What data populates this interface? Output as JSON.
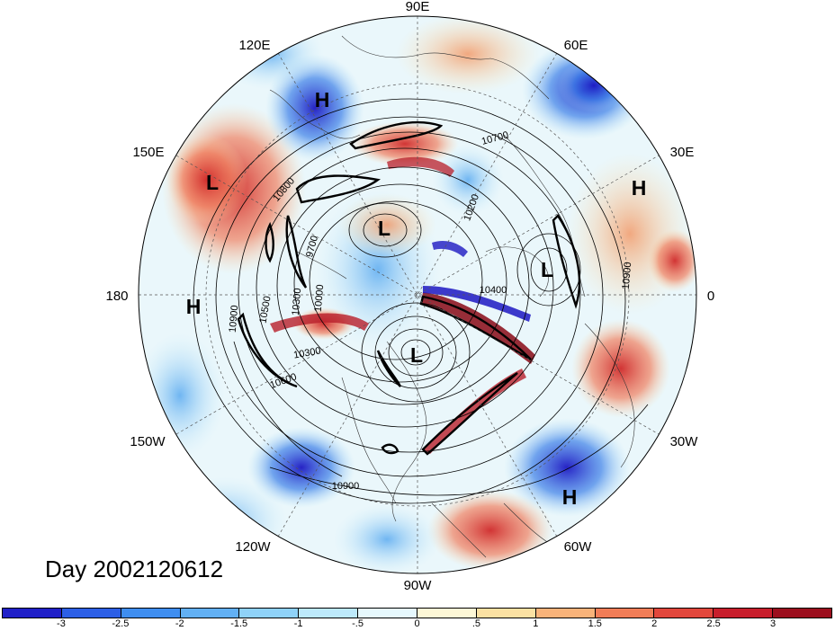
{
  "date_label": "Day 2002120612",
  "longitude_labels": {
    "lon_90e": "90E",
    "lon_60e": "60E",
    "lon_30e": "30E",
    "lon_0": "0",
    "lon_30w": "30W",
    "lon_60w": "60W",
    "lon_90w": "90W",
    "lon_120w": "120W",
    "lon_150w": "150W",
    "lon_180": "180",
    "lon_150e": "150E",
    "lon_120e": "120E"
  },
  "pressure_systems": [
    {
      "id": "h1",
      "label": "H"
    },
    {
      "id": "h2",
      "label": "H"
    },
    {
      "id": "h3",
      "label": "H"
    },
    {
      "id": "h4",
      "label": "H"
    },
    {
      "id": "l1",
      "label": "L"
    },
    {
      "id": "l2",
      "label": "L"
    },
    {
      "id": "l3",
      "label": "L"
    },
    {
      "id": "l4",
      "label": "L"
    }
  ],
  "contour_labels": [
    "10700",
    "10800",
    "10200",
    "9700",
    "10500",
    "10300",
    "10900",
    "10400",
    "10000",
    "10900",
    "10600",
    "10300",
    "10900"
  ],
  "colorbar": {
    "ticks": [
      "-3",
      "-2.5",
      "-2",
      "-1.5",
      "-1",
      "-.5",
      "0",
      ".5",
      "1",
      "1.5",
      "2",
      "2.5",
      "3"
    ],
    "colors": [
      "#2020c8",
      "#2c5fe6",
      "#3f8ef0",
      "#62b0f4",
      "#8fd2f8",
      "#bde9fb",
      "#e6f8fd",
      "#fdf7d6",
      "#fbe1a3",
      "#f8b37a",
      "#f17d57",
      "#e2473c",
      "#c81e2c",
      "#9c0f1e"
    ]
  }
}
